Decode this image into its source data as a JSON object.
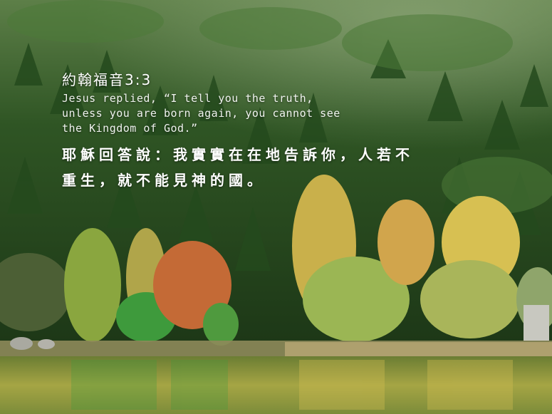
{
  "verse": {
    "reference": "約翰福音3:3",
    "english_lines": [
      "Jesus replied, “I tell you the truth,",
      "unless you are born again, you cannot see",
      "the Kingdom of God.”"
    ],
    "chinese_lines": [
      "耶穌回答說：我實實在在地告訴你，人若不",
      "重生，就不能見神的國。"
    ]
  },
  "colors": {
    "forest_dark": "#1f3b1a",
    "forest_mid": "#3f6a2e",
    "autumn_orange": "#c46a36",
    "autumn_yellow": "#d7b84a",
    "lake": "#7f8f3a"
  }
}
